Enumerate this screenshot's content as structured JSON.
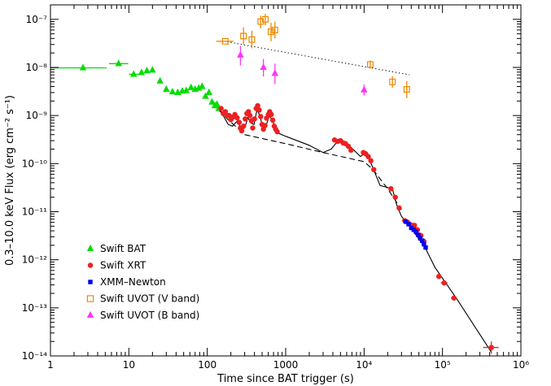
{
  "chart_data": {
    "type": "scatter",
    "xlabel": "Time since BAT trigger (s)",
    "ylabel": "0.3–10.0 keV Flux (erg cm⁻² s⁻¹)",
    "xscale": "log",
    "yscale": "log",
    "xlim": [
      1,
      1000000
    ],
    "ylim": [
      1e-14,
      2e-07
    ],
    "xtick_labels": [
      "1",
      "10",
      "100",
      "1000",
      "10⁴",
      "10⁵",
      "10⁶"
    ],
    "ytick_labels": [
      "10⁻¹⁴",
      "10⁻¹³",
      "10⁻¹²",
      "10⁻¹¹",
      "10⁻¹⁰",
      "10⁻⁹",
      "10⁻⁸",
      "10⁻⁷"
    ],
    "legend_position": "bottom-left",
    "series": [
      {
        "name": "Swift BAT",
        "marker": "triangle",
        "color": "#00dd00",
        "points": [
          {
            "x": 2.6,
            "y": 9.8e-09,
            "xerr": [
              1.0,
              5.2
            ]
          },
          {
            "x": 7.4,
            "y": 1.2e-08,
            "xerr": [
              5.6,
              9.8
            ]
          },
          {
            "x": 11.5,
            "y": 7.2e-09,
            "xerr": [
              10.0,
              13.5
            ]
          },
          {
            "x": 14.5,
            "y": 7.8e-09
          },
          {
            "x": 17,
            "y": 8.5e-09
          },
          {
            "x": 20,
            "y": 8.8e-09
          },
          {
            "x": 25,
            "y": 5.2e-09
          },
          {
            "x": 30,
            "y": 3.5e-09
          },
          {
            "x": 36,
            "y": 3.1e-09
          },
          {
            "x": 42,
            "y": 3e-09
          },
          {
            "x": 48,
            "y": 3.2e-09
          },
          {
            "x": 54,
            "y": 3.3e-09
          },
          {
            "x": 62,
            "y": 3.8e-09
          },
          {
            "x": 70,
            "y": 3.5e-09
          },
          {
            "x": 78,
            "y": 3.7e-09
          },
          {
            "x": 86,
            "y": 4e-09
          },
          {
            "x": 95,
            "y": 2.5e-09
          },
          {
            "x": 105,
            "y": 3e-09
          },
          {
            "x": 115,
            "y": 1.9e-09
          },
          {
            "x": 125,
            "y": 1.6e-09
          },
          {
            "x": 133,
            "y": 1.7e-09
          },
          {
            "x": 140,
            "y": 1.4e-09
          }
        ]
      },
      {
        "name": "Swift XRT",
        "marker": "circle",
        "color": "#ee2020",
        "points": [
          {
            "x": 150,
            "y": 1.4e-09
          },
          {
            "x": 160,
            "y": 1.1e-09
          },
          {
            "x": 170,
            "y": 1.2e-09
          },
          {
            "x": 180,
            "y": 1e-09
          },
          {
            "x": 190,
            "y": 1e-09
          },
          {
            "x": 200,
            "y": 8.2e-10
          },
          {
            "x": 210,
            "y": 9.2e-10
          },
          {
            "x": 225,
            "y": 1.05e-09
          },
          {
            "x": 240,
            "y": 9e-10
          },
          {
            "x": 255,
            "y": 7.2e-10
          },
          {
            "x": 265,
            "y": 5.5e-10
          },
          {
            "x": 275,
            "y": 4.8e-10
          },
          {
            "x": 290,
            "y": 6e-10
          },
          {
            "x": 305,
            "y": 8.5e-10
          },
          {
            "x": 320,
            "y": 1.1e-09
          },
          {
            "x": 335,
            "y": 1.2e-09
          },
          {
            "x": 350,
            "y": 1e-09
          },
          {
            "x": 365,
            "y": 7.8e-10
          },
          {
            "x": 380,
            "y": 5.5e-10
          },
          {
            "x": 400,
            "y": 8.5e-10
          },
          {
            "x": 420,
            "y": 1.4e-09
          },
          {
            "x": 440,
            "y": 1.6e-09
          },
          {
            "x": 460,
            "y": 1.3e-09
          },
          {
            "x": 480,
            "y": 9.5e-10
          },
          {
            "x": 500,
            "y": 6.5e-10
          },
          {
            "x": 520,
            "y": 5.2e-10
          },
          {
            "x": 545,
            "y": 6.2e-10
          },
          {
            "x": 570,
            "y": 8.8e-10
          },
          {
            "x": 600,
            "y": 1.05e-09
          },
          {
            "x": 625,
            "y": 1.2e-09
          },
          {
            "x": 655,
            "y": 1.05e-09
          },
          {
            "x": 685,
            "y": 8e-10
          },
          {
            "x": 715,
            "y": 6e-10
          },
          {
            "x": 745,
            "y": 5.2e-10
          },
          {
            "x": 780,
            "y": 4.6e-10
          },
          {
            "x": 4200,
            "y": 3.1e-10
          },
          {
            "x": 4600,
            "y": 2.9e-10
          },
          {
            "x": 5000,
            "y": 3e-10
          },
          {
            "x": 5400,
            "y": 2.7e-10
          },
          {
            "x": 5800,
            "y": 2.6e-10
          },
          {
            "x": 6300,
            "y": 2.3e-10
          },
          {
            "x": 6800,
            "y": 1.9e-10
          },
          {
            "x": 9800,
            "y": 1.7e-10
          },
          {
            "x": 10500,
            "y": 1.6e-10
          },
          {
            "x": 11300,
            "y": 1.4e-10
          },
          {
            "x": 12200,
            "y": 1.15e-10
          },
          {
            "x": 13300,
            "y": 7.5e-11
          },
          {
            "x": 22000,
            "y": 3e-11
          },
          {
            "x": 25000,
            "y": 2e-11
          },
          {
            "x": 28000,
            "y": 1.2e-11
          },
          {
            "x": 33000,
            "y": 6.5e-12
          },
          {
            "x": 36000,
            "y": 6e-12
          },
          {
            "x": 40000,
            "y": 5.3e-12
          },
          {
            "x": 44000,
            "y": 5.2e-12
          },
          {
            "x": 48000,
            "y": 4.2e-12
          },
          {
            "x": 53000,
            "y": 3.2e-12
          },
          {
            "x": 58000,
            "y": 2.4e-12
          },
          {
            "x": 90000,
            "y": 4.5e-13
          },
          {
            "x": 105000,
            "y": 3.3e-13,
            "xerr": [
              95000,
              116000
            ]
          },
          {
            "x": 140000,
            "y": 1.6e-13,
            "xerr": [
              128000,
              152000
            ]
          },
          {
            "x": 420000,
            "y": 1.5e-14,
            "xerr": [
              330000,
              520000
            ],
            "yerr": [
              1.1e-14,
              2e-14
            ]
          }
        ]
      },
      {
        "name": "XMM–Newton",
        "marker": "square",
        "color": "#0000ee",
        "points": [
          {
            "x": 34000,
            "y": 6.2e-12
          },
          {
            "x": 37000,
            "y": 5.5e-12
          },
          {
            "x": 40000,
            "y": 4.6e-12
          },
          {
            "x": 43000,
            "y": 4.2e-12
          },
          {
            "x": 46000,
            "y": 3.8e-12
          },
          {
            "x": 49000,
            "y": 3.3e-12
          },
          {
            "x": 52000,
            "y": 2.8e-12
          },
          {
            "x": 55000,
            "y": 2.5e-12
          },
          {
            "x": 58000,
            "y": 2.1e-12
          },
          {
            "x": 61000,
            "y": 1.8e-12
          }
        ]
      },
      {
        "name": "Swift UVOT (V band)",
        "marker": "open-square",
        "color": "#ee8800",
        "points": [
          {
            "x": 170,
            "y": 3.5e-08,
            "xerr": [
              130,
              215
            ]
          },
          {
            "x": 290,
            "y": 4.5e-08,
            "yerr": [
              3e-08,
              6.8e-08
            ]
          },
          {
            "x": 370,
            "y": 3.8e-08,
            "yerr": [
              2.5e-08,
              5.8e-08
            ]
          },
          {
            "x": 480,
            "y": 9e-08,
            "yerr": [
              6.5e-08,
              1.2e-07
            ]
          },
          {
            "x": 550,
            "y": 1e-07,
            "yerr": [
              7.5e-08,
              1.3e-07
            ]
          },
          {
            "x": 650,
            "y": 5.5e-08,
            "yerr": [
              3.5e-08,
              8.5e-08
            ]
          },
          {
            "x": 730,
            "y": 6e-08,
            "yerr": [
              4e-08,
              9e-08
            ]
          },
          {
            "x": 12000,
            "y": 1.15e-08,
            "yerr": [
              9.5e-09,
              1.4e-08
            ]
          },
          {
            "x": 23000,
            "y": 5e-09,
            "yerr": [
              3.8e-09,
              6.6e-09
            ]
          },
          {
            "x": 35000,
            "y": 3.5e-09,
            "yerr": [
              2.3e-09,
              5.2e-09
            ]
          }
        ]
      },
      {
        "name": "Swift UVOT (B band)",
        "marker": "open-triangle",
        "color": "#ff33ff",
        "points": [
          {
            "x": 265,
            "y": 1.8e-08,
            "yerr": [
              1.1e-08,
              2.8e-08
            ]
          },
          {
            "x": 520,
            "y": 1e-08,
            "yerr": [
              6.5e-09,
              1.5e-08
            ]
          },
          {
            "x": 730,
            "y": 7.5e-09,
            "yerr": [
              4.5e-09,
              1.2e-08
            ]
          },
          {
            "x": 10000,
            "y": 3.4e-09,
            "yerr": [
              2.6e-09,
              4.4e-09
            ]
          }
        ]
      }
    ],
    "model_curves": [
      {
        "style": "solid",
        "color": "#000000",
        "points": [
          [
            140,
            1.5e-09
          ],
          [
            160,
            1e-09
          ],
          [
            185,
            6.5e-10
          ],
          [
            210,
            6e-10
          ],
          [
            245,
            8e-10
          ],
          [
            270,
            5e-10
          ],
          [
            300,
            5.5e-10
          ],
          [
            330,
            9e-10
          ],
          [
            360,
            7e-10
          ],
          [
            395,
            6.5e-10
          ],
          [
            430,
            1.3e-09
          ],
          [
            470,
            1e-09
          ],
          [
            510,
            5.5e-10
          ],
          [
            560,
            6e-10
          ],
          [
            620,
            1e-09
          ],
          [
            700,
            7e-10
          ],
          [
            800,
            4.3e-10
          ],
          [
            1000,
            3.7e-10
          ],
          [
            2000,
            2.4e-10
          ],
          [
            3000,
            1.7e-10
          ],
          [
            3800,
            2e-10
          ],
          [
            4500,
            2.8e-10
          ],
          [
            5500,
            2.8e-10
          ],
          [
            7000,
            2.1e-10
          ],
          [
            9000,
            1.4e-10
          ],
          [
            10500,
            1.7e-10
          ],
          [
            12000,
            1.1e-10
          ],
          [
            14000,
            6e-11
          ],
          [
            16000,
            3.5e-11
          ],
          [
            20000,
            3.2e-11
          ],
          [
            23000,
            3e-11
          ],
          [
            26000,
            1.4e-11
          ],
          [
            30000,
            8e-12
          ],
          [
            40000,
            4.5e-12
          ],
          [
            60000,
            1.8e-12
          ],
          [
            80000,
            7e-13
          ],
          [
            150000,
            1.6e-13
          ],
          [
            420000,
            1.2e-14
          ]
        ]
      },
      {
        "style": "dashed",
        "color": "#000000",
        "points": [
          [
            140,
            1.3e-09
          ],
          [
            180,
            8.5e-10
          ],
          [
            300,
            4e-10
          ],
          [
            1000,
            2.6e-10
          ],
          [
            3000,
            1.7e-10
          ],
          [
            10000,
            1.1e-10
          ],
          [
            13000,
            7.5e-11
          ],
          [
            20000,
            3e-11
          ],
          [
            30000,
            1.1e-11
          ]
        ]
      },
      {
        "style": "dotted",
        "color": "#000000",
        "points": [
          [
            180,
            3.4e-08
          ],
          [
            38000,
            7e-09
          ]
        ]
      }
    ]
  }
}
